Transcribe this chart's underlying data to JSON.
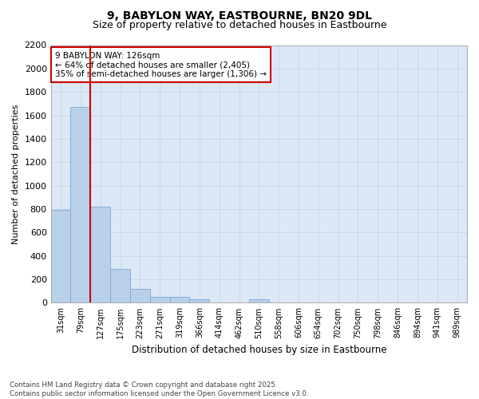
{
  "title": "9, BABYLON WAY, EASTBOURNE, BN20 9DL",
  "subtitle": "Size of property relative to detached houses in Eastbourne",
  "xlabel": "Distribution of detached houses by size in Eastbourne",
  "ylabel": "Number of detached properties",
  "categories": [
    "31sqm",
    "79sqm",
    "127sqm",
    "175sqm",
    "223sqm",
    "271sqm",
    "319sqm",
    "366sqm",
    "414sqm",
    "462sqm",
    "510sqm",
    "558sqm",
    "606sqm",
    "654sqm",
    "702sqm",
    "750sqm",
    "798sqm",
    "846sqm",
    "894sqm",
    "941sqm",
    "989sqm"
  ],
  "values": [
    790,
    1670,
    820,
    290,
    120,
    50,
    50,
    30,
    0,
    0,
    30,
    0,
    0,
    0,
    0,
    0,
    0,
    0,
    0,
    0,
    0
  ],
  "bar_color": "#b8d0ea",
  "bar_edge_color": "#7baad4",
  "vline_color": "#cc0000",
  "annotation_text": "9 BABYLON WAY: 126sqm\n← 64% of detached houses are smaller (2,405)\n35% of semi-detached houses are larger (1,306) →",
  "annotation_box_color": "#cc0000",
  "annotation_text_color": "#000000",
  "annotation_bg": "#ffffff",
  "ylim": [
    0,
    2200
  ],
  "yticks": [
    0,
    200,
    400,
    600,
    800,
    1000,
    1200,
    1400,
    1600,
    1800,
    2000,
    2200
  ],
  "grid_color": "#c8d8ea",
  "bg_color": "#dce8f5",
  "title_fontsize": 10,
  "subtitle_fontsize": 9,
  "footer_text": "Contains HM Land Registry data © Crown copyright and database right 2025.\nContains public sector information licensed under the Open Government Licence v3.0."
}
